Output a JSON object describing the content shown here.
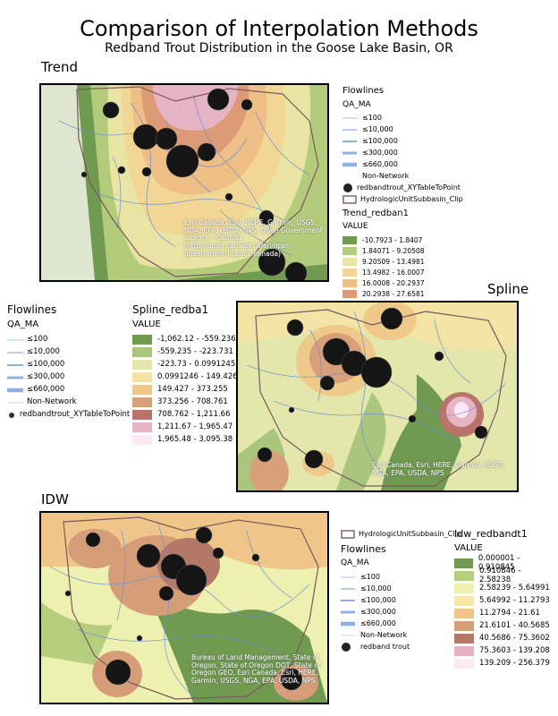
{
  "header": {
    "title": "Comparison of Interpolation Methods",
    "subtitle": "Redband Trout Distribution in the Goose Lake Basin, OR"
  },
  "trend": {
    "section_label": "Trend",
    "credit": "Esri Canada, Esri, HERE, Garmin, USGS, NGA, EPA, USDA, NPS, Open Government Licence - Canada (http://open.canada.ca/en/open-government-licence-canada)",
    "legend": {
      "flowlines_title": "Flowlines",
      "qa_title": "QA_MA",
      "flow_classes": [
        "≤100",
        "≤10,000",
        "≤100,000",
        "≤300,000",
        "≤660,000",
        "Non-Network"
      ],
      "points_label": "redbandtrout_XYTableToPoint",
      "huc_label": "HydrologicUnitSubbasin_Clip",
      "raster_title": "Trend_redban1",
      "value_label": "VALUE",
      "classes": [
        "-10.7923 - 1.8407",
        "1.84071 - 9.20508",
        "9.20509 - 13.4981",
        "13.4982 - 16.0007",
        "16.0008 - 20.2937",
        "20.2938 - 27.6581"
      ],
      "colors": [
        "#6f9a50",
        "#b3cc7c",
        "#e9e4a4",
        "#f1d696",
        "#eebe86",
        "#dc9b76"
      ]
    }
  },
  "spline": {
    "section_label": "Spline",
    "credit": "Esri Canada, Esri, HERE, Garmin, USGS, NGA, EPA, USDA, NPS",
    "legend": {
      "flowlines_title": "Flowlines",
      "qa_title": "QA_MA",
      "flow_classes": [
        "≤100",
        "≤10,000",
        "≤100,000",
        "≤300,000",
        "≤660,000",
        "Non-Network"
      ],
      "points_label": "redbandtrout_XYTableToPoint",
      "raster_title": "Spline_redba1",
      "value_label": "VALUE",
      "classes": [
        "-1,062.12 - -559.236",
        "-559.235 - -223.731",
        "-223.73 - 0.0991245",
        "0.0991246 - 149.426",
        "149.427 - 373.255",
        "373.256 - 708.761",
        "708.762 - 1,211.66",
        "1,211.67 - 1,965.47",
        "1,965.48 - 3,095.38"
      ],
      "colors": [
        "#6f9a50",
        "#a9c67c",
        "#e3e7ac",
        "#f3e4a6",
        "#efc98a",
        "#d8a07a",
        "#b8746a",
        "#e6b4c4",
        "#fbeaf3"
      ]
    }
  },
  "idw": {
    "section_label": "IDW",
    "credit": "Bureau of Land Management, State of Oregon, State of Oregon DOT, State of Oregon GEO, Esri Canada, Esri, HERE, Garmin, USGS, NGA, EPA, USDA, NPS",
    "legend": {
      "huc_label": "HydrologicUnitSubbasin_Clip",
      "flowlines_title": "Flowlines",
      "qa_title": "QA_MA",
      "flow_classes": [
        "≤100",
        "≤10,000",
        "≤100,000",
        "≤300,000",
        "≤660,000",
        "Non-Network"
      ],
      "points_label": "redband trout",
      "raster_title": "Idw_redbandt1",
      "value_label": "VALUE",
      "classes": [
        "0.000001 - 0.910845",
        "0.910846 - 2.58238",
        "2.58239 - 5.64991",
        "5.64992 - 11.2793",
        "11.2794 - 21.61",
        "21.6101 - 40.5685",
        "40.5686 - 75.3602",
        "75.3603 - 139.208",
        "139.209 - 256.379"
      ],
      "colors": [
        "#6f9a50",
        "#b5ce7e",
        "#eef0b0",
        "#f6e6a8",
        "#efc58a",
        "#d59e78",
        "#b37868",
        "#e4b2c2",
        "#fbeaf4"
      ]
    }
  }
}
